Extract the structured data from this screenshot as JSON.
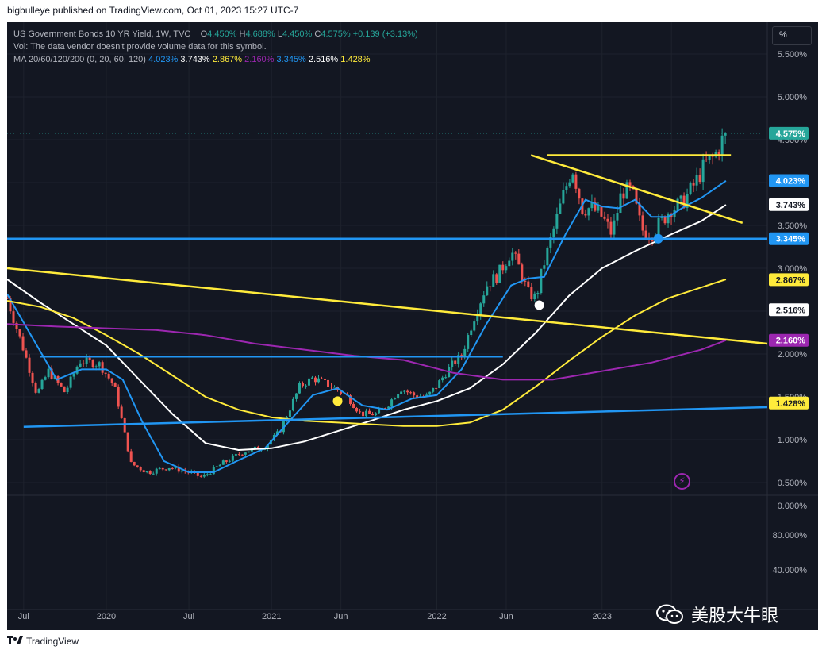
{
  "publisher_line": "bigbulleye published on TradingView.com, Oct 01, 2023 15:27 UTC-7",
  "legend": {
    "symbol": "US Government Bonds 10 YR Yield, 1W, TVC",
    "ohlc": [
      {
        "label": "O",
        "value": "4.450%"
      },
      {
        "label": "H",
        "value": "4.688%"
      },
      {
        "label": "L",
        "value": "4.450%"
      },
      {
        "label": "C",
        "value": "4.575%"
      }
    ],
    "change": "+0.139 (+3.13%)",
    "vol_note": "Vol: The data vendor doesn't provide volume data for this symbol.",
    "ma_label": "MA 20/60/120/200 (0, 20, 60, 120)",
    "ma_values": [
      {
        "value": "4.023%",
        "color": "#2196f3"
      },
      {
        "value": "3.743%",
        "color": "#ffffff"
      },
      {
        "value": "2.867%",
        "color": "#ffeb3b"
      },
      {
        "value": "2.160%",
        "color": "#9c27b0"
      },
      {
        "value": "3.345%",
        "color": "#2196f3"
      },
      {
        "value": "2.516%",
        "color": "#ffffff"
      },
      {
        "value": "1.428%",
        "color": "#ffeb3b"
      }
    ]
  },
  "unit_button_label": "%",
  "footer_brand": "TradingView",
  "watermark_text": "美股大牛眼",
  "icons": {
    "lightning": "lightning-icon",
    "tradingview_logo": "tradingview-logo-icon",
    "wechat": "wechat-icon"
  },
  "colors": {
    "background": "#131722",
    "up": "#26a69a",
    "down": "#ef5350",
    "ma20": "#2196f3",
    "ma60": "#ffffff",
    "ma120": "#ffeb3b",
    "ma200": "#9c27b0",
    "grid": "#1e222d"
  },
  "chart_data": {
    "type": "candlestick",
    "title": "US Government Bonds 10 YR Yield, 1W, TVC",
    "y_scale": "linear",
    "y_unit": "%",
    "grid": true,
    "y_ticks": [
      "5.500%",
      "5.000%",
      "4.500%",
      "3.500%",
      "3.000%",
      "2.500%",
      "2.000%",
      "1.500%",
      "1.000%",
      "0.500%"
    ],
    "y_ticks_numeric": [
      5.5,
      5.0,
      4.5,
      3.5,
      3.0,
      2.5,
      2.0,
      1.5,
      1.0,
      0.5
    ],
    "x_ticks": [
      "Jul",
      "2020",
      "Jul",
      "2021",
      "Jun",
      "2022",
      "Jun",
      "2023",
      "Jun"
    ],
    "x_ticks_numeric": [
      2019.5,
      2020.0,
      2020.5,
      2021.0,
      2021.42,
      2022.0,
      2022.42,
      2023.0,
      2023.42
    ],
    "x_range": [
      2019.4,
      2024.0
    ],
    "y_range": [
      0.5,
      5.75
    ],
    "price_tags": [
      {
        "label": "4.575%",
        "value": 4.575,
        "bg": "#26a69a",
        "fg": "#ffffff"
      },
      {
        "label": "4.023%",
        "value": 4.023,
        "bg": "#2196f3",
        "fg": "#ffffff"
      },
      {
        "label": "3.743%",
        "value": 3.743,
        "bg": "#ffffff",
        "fg": "#131722"
      },
      {
        "label": "3.345%",
        "value": 3.345,
        "bg": "#2196f3",
        "fg": "#ffffff"
      },
      {
        "label": "2.867%",
        "value": 2.867,
        "bg": "#ffeb3b",
        "fg": "#131722"
      },
      {
        "label": "2.516%",
        "value": 2.516,
        "bg": "#ffffff",
        "fg": "#131722"
      },
      {
        "label": "2.160%",
        "value": 2.16,
        "bg": "#9c27b0",
        "fg": "#ffffff"
      },
      {
        "label": "1.428%",
        "value": 1.428,
        "bg": "#ffeb3b",
        "fg": "#131722"
      }
    ],
    "price_path": [
      [
        2019.4,
        2.65
      ],
      [
        2019.5,
        2.05
      ],
      [
        2019.58,
        1.53
      ],
      [
        2019.65,
        1.8
      ],
      [
        2019.75,
        1.55
      ],
      [
        2019.84,
        1.92
      ],
      [
        2019.96,
        1.88
      ],
      [
        2020.05,
        1.62
      ],
      [
        2020.15,
        0.72
      ],
      [
        2020.25,
        0.62
      ],
      [
        2020.38,
        0.68
      ],
      [
        2020.5,
        0.62
      ],
      [
        2020.58,
        0.56
      ],
      [
        2020.7,
        0.72
      ],
      [
        2020.83,
        0.86
      ],
      [
        2020.96,
        0.92
      ],
      [
        2021.05,
        1.1
      ],
      [
        2021.17,
        1.62
      ],
      [
        2021.25,
        1.72
      ],
      [
        2021.37,
        1.62
      ],
      [
        2021.46,
        1.5
      ],
      [
        2021.54,
        1.3
      ],
      [
        2021.63,
        1.3
      ],
      [
        2021.7,
        1.4
      ],
      [
        2021.78,
        1.6
      ],
      [
        2021.86,
        1.52
      ],
      [
        2021.94,
        1.5
      ],
      [
        2022.0,
        1.63
      ],
      [
        2022.08,
        1.85
      ],
      [
        2022.15,
        1.98
      ],
      [
        2022.22,
        2.4
      ],
      [
        2022.3,
        2.8
      ],
      [
        2022.37,
        2.92
      ],
      [
        2022.45,
        3.2
      ],
      [
        2022.5,
        3.0
      ],
      [
        2022.55,
        2.72
      ],
      [
        2022.6,
        2.65
      ],
      [
        2022.64,
        3.0
      ],
      [
        2022.7,
        3.4
      ],
      [
        2022.77,
        3.88
      ],
      [
        2022.82,
        4.18
      ],
      [
        2022.88,
        3.7
      ],
      [
        2022.94,
        3.7
      ],
      [
        2023.0,
        3.6
      ],
      [
        2023.06,
        3.4
      ],
      [
        2023.12,
        3.9
      ],
      [
        2023.18,
        3.9
      ],
      [
        2023.24,
        3.45
      ],
      [
        2023.3,
        3.4
      ],
      [
        2023.36,
        3.55
      ],
      [
        2023.42,
        3.7
      ],
      [
        2023.48,
        3.75
      ],
      [
        2023.55,
        3.95
      ],
      [
        2023.62,
        4.2
      ],
      [
        2023.68,
        4.3
      ],
      [
        2023.74,
        4.55
      ],
      [
        2023.75,
        4.575
      ]
    ],
    "moving_averages": [
      {
        "name": "MA 20",
        "value": "4.023%",
        "color": "#2196f3",
        "points": [
          [
            2019.4,
            2.7
          ],
          [
            2019.55,
            2.2
          ],
          [
            2019.7,
            1.7
          ],
          [
            2019.85,
            1.82
          ],
          [
            2020.0,
            1.82
          ],
          [
            2020.1,
            1.7
          ],
          [
            2020.22,
            1.2
          ],
          [
            2020.35,
            0.75
          ],
          [
            2020.5,
            0.62
          ],
          [
            2020.65,
            0.62
          ],
          [
            2020.8,
            0.76
          ],
          [
            2020.96,
            0.9
          ],
          [
            2021.1,
            1.2
          ],
          [
            2021.25,
            1.52
          ],
          [
            2021.4,
            1.6
          ],
          [
            2021.55,
            1.4
          ],
          [
            2021.7,
            1.35
          ],
          [
            2021.85,
            1.48
          ],
          [
            2022.0,
            1.52
          ],
          [
            2022.15,
            1.82
          ],
          [
            2022.3,
            2.35
          ],
          [
            2022.45,
            2.8
          ],
          [
            2022.55,
            2.88
          ],
          [
            2022.65,
            2.9
          ],
          [
            2022.78,
            3.4
          ],
          [
            2022.9,
            3.8
          ],
          [
            2023.0,
            3.72
          ],
          [
            2023.1,
            3.7
          ],
          [
            2023.2,
            3.8
          ],
          [
            2023.3,
            3.6
          ],
          [
            2023.4,
            3.6
          ],
          [
            2023.5,
            3.72
          ],
          [
            2023.6,
            3.82
          ],
          [
            2023.75,
            4.02
          ]
        ]
      },
      {
        "name": "MA 60",
        "value": "3.743%",
        "color": "#ffffff",
        "points": [
          [
            2019.4,
            2.87
          ],
          [
            2019.6,
            2.6
          ],
          [
            2019.8,
            2.35
          ],
          [
            2020.0,
            2.1
          ],
          [
            2020.2,
            1.7
          ],
          [
            2020.4,
            1.3
          ],
          [
            2020.6,
            0.96
          ],
          [
            2020.8,
            0.88
          ],
          [
            2021.0,
            0.9
          ],
          [
            2021.2,
            0.98
          ],
          [
            2021.4,
            1.1
          ],
          [
            2021.6,
            1.22
          ],
          [
            2021.8,
            1.35
          ],
          [
            2022.0,
            1.45
          ],
          [
            2022.2,
            1.6
          ],
          [
            2022.4,
            1.88
          ],
          [
            2022.6,
            2.25
          ],
          [
            2022.8,
            2.68
          ],
          [
            2023.0,
            3.0
          ],
          [
            2023.2,
            3.2
          ],
          [
            2023.4,
            3.38
          ],
          [
            2023.6,
            3.55
          ],
          [
            2023.75,
            3.74
          ]
        ]
      },
      {
        "name": "MA 120",
        "value": "2.867%",
        "color": "#ffeb3b",
        "points": [
          [
            2019.4,
            2.62
          ],
          [
            2019.6,
            2.55
          ],
          [
            2019.8,
            2.42
          ],
          [
            2020.0,
            2.22
          ],
          [
            2020.2,
            2.0
          ],
          [
            2020.4,
            1.75
          ],
          [
            2020.6,
            1.5
          ],
          [
            2020.8,
            1.35
          ],
          [
            2021.0,
            1.26
          ],
          [
            2021.2,
            1.22
          ],
          [
            2021.4,
            1.2
          ],
          [
            2021.6,
            1.18
          ],
          [
            2021.8,
            1.16
          ],
          [
            2022.0,
            1.16
          ],
          [
            2022.2,
            1.2
          ],
          [
            2022.4,
            1.35
          ],
          [
            2022.6,
            1.62
          ],
          [
            2022.8,
            1.92
          ],
          [
            2023.0,
            2.2
          ],
          [
            2023.2,
            2.45
          ],
          [
            2023.4,
            2.65
          ],
          [
            2023.75,
            2.87
          ]
        ]
      },
      {
        "name": "MA 200",
        "value": "2.160%",
        "color": "#9c27b0",
        "points": [
          [
            2019.4,
            2.35
          ],
          [
            2019.7,
            2.32
          ],
          [
            2020.0,
            2.3
          ],
          [
            2020.3,
            2.28
          ],
          [
            2020.6,
            2.22
          ],
          [
            2020.9,
            2.12
          ],
          [
            2021.2,
            2.05
          ],
          [
            2021.5,
            1.98
          ],
          [
            2021.8,
            1.93
          ],
          [
            2022.1,
            1.78
          ],
          [
            2022.4,
            1.7
          ],
          [
            2022.7,
            1.7
          ],
          [
            2023.0,
            1.8
          ],
          [
            2023.3,
            1.9
          ],
          [
            2023.6,
            2.05
          ],
          [
            2023.75,
            2.16
          ]
        ]
      }
    ],
    "annotations": [
      {
        "type": "trendline",
        "color": "#ffeb3b",
        "from": [
          2019.4,
          3.0
        ],
        "to": [
          2024.0,
          2.12
        ]
      },
      {
        "type": "trendline",
        "color": "#2196f3",
        "from": [
          2019.5,
          1.15
        ],
        "to": [
          2024.0,
          1.38
        ]
      },
      {
        "type": "trendline",
        "color": "#2196f3",
        "from": [
          2019.6,
          1.97
        ],
        "to": [
          2022.4,
          1.97
        ]
      },
      {
        "type": "trendline",
        "color": "#2196f3",
        "from": [
          2019.4,
          3.345
        ],
        "to": [
          2024.0,
          3.345
        ]
      },
      {
        "type": "trendline",
        "color": "#ffeb3b",
        "from": [
          2022.57,
          4.32
        ],
        "to": [
          2023.85,
          3.53
        ]
      },
      {
        "type": "trendline",
        "color": "#ffeb3b",
        "from": [
          2022.67,
          4.32
        ],
        "to": [
          2023.78,
          4.32
        ]
      },
      {
        "type": "marker",
        "color": "#ffeb3b",
        "at": [
          2021.4,
          1.45
        ]
      },
      {
        "type": "marker",
        "color": "#ffffff",
        "at": [
          2022.62,
          2.57
        ]
      },
      {
        "type": "marker",
        "color": "#2196f3",
        "at": [
          2023.34,
          3.345
        ]
      }
    ],
    "lower_pane_ticks": [
      "0.000%",
      "80.000%",
      "40.000%"
    ]
  }
}
